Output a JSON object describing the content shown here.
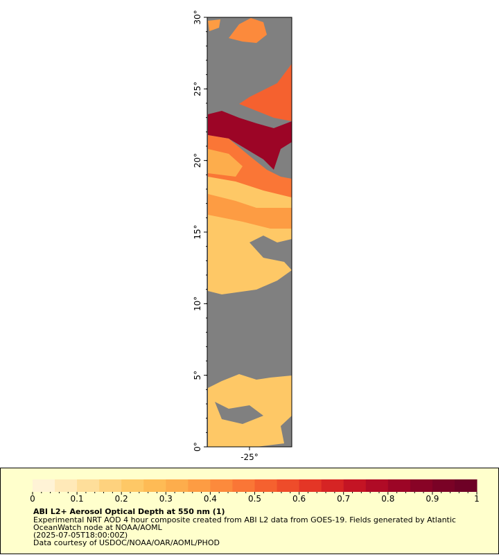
{
  "chart_data": {
    "type": "map",
    "title": "ABI L2+ Aerosol Optical Depth at 550 nm (1)",
    "description_lines": [
      "Experimental NRT AOD 4 hour composite created from ABI L2 data from GOES-19. Fields generated by Atlantic",
      "OceanWatch node at NOAA/AOML",
      "(2025-07-05T18:00:00Z)",
      "Data courtesy of USDOC/NOAA/OAR/AOML/PHOD"
    ],
    "xlim": [
      -28,
      -22
    ],
    "ylim": [
      0,
      30
    ],
    "xticks": [
      {
        "value": -25,
        "label": "-25°"
      }
    ],
    "yticks": [
      {
        "value": 0,
        "label": "0°"
      },
      {
        "value": 5,
        "label": "5°"
      },
      {
        "value": 10,
        "label": "10°"
      },
      {
        "value": 15,
        "label": "15°"
      },
      {
        "value": 20,
        "label": "20°"
      },
      {
        "value": 25,
        "label": "25°"
      },
      {
        "value": 30,
        "label": "30°"
      }
    ],
    "colorbar": {
      "range": [
        0,
        1
      ],
      "ticks": [
        0,
        0.1,
        0.2,
        0.3,
        0.4,
        0.5,
        0.6,
        0.7,
        0.8,
        0.9,
        1
      ],
      "colors": [
        "#fff3d6",
        "#ffe9b8",
        "#fede9a",
        "#fed27e",
        "#fec866",
        "#febb55",
        "#fdad4c",
        "#fd9c43",
        "#fc8a3c",
        "#fa7636",
        "#f5612f",
        "#ee4c2a",
        "#e43626",
        "#d62424",
        "#c41424",
        "#b00b26",
        "#9c0526",
        "#880326",
        "#7a0226",
        "#6e0126"
      ]
    }
  }
}
